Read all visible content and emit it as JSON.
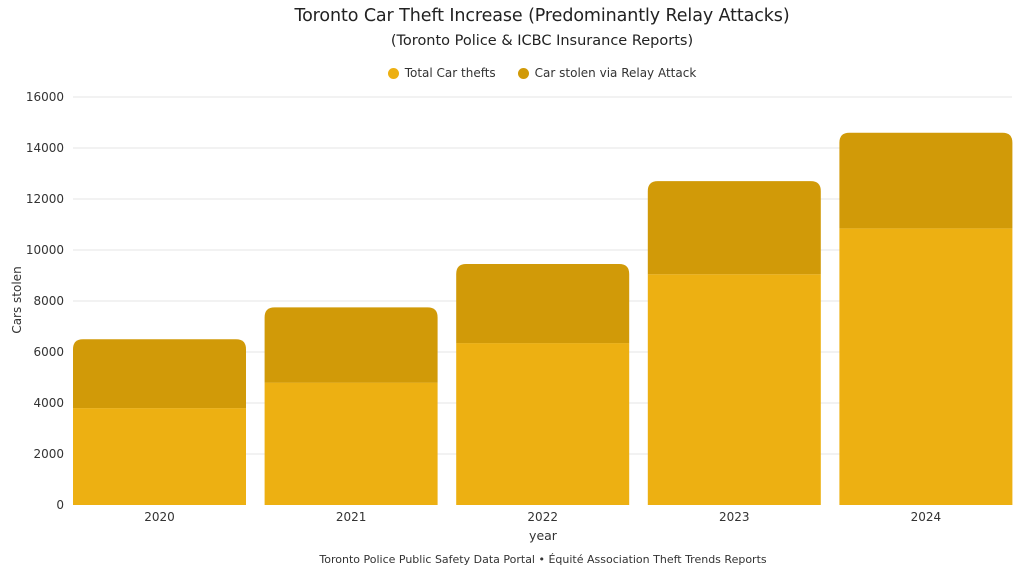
{
  "chart_data": {
    "type": "bar",
    "stacked": true,
    "title": "Toronto Car Theft Increase (Predominantly Relay Attacks)",
    "subtitle": "(Toronto Police & ICBC Insurance Reports)",
    "xlabel": "year",
    "ylabel": "Cars stolen",
    "categories": [
      "2020",
      "2021",
      "2022",
      "2023",
      "2024"
    ],
    "series": [
      {
        "name": "Total Car thefts",
        "color": "#EDB012",
        "values": [
          3800,
          4800,
          6350,
          9050,
          10850
        ]
      },
      {
        "name": "Car stolen via Relay Attack",
        "color": "#D19A08",
        "values": [
          2700,
          2950,
          3100,
          3650,
          3750
        ]
      }
    ],
    "stack_totals": [
      6500,
      7750,
      9450,
      12700,
      14600
    ],
    "ylim": [
      0,
      16000
    ],
    "yticks": [
      0,
      2000,
      4000,
      6000,
      8000,
      10000,
      12000,
      14000,
      16000
    ],
    "grid": true,
    "legend_position": "top-center",
    "source_note": "Toronto Police Public Safety Data Portal • Équité Association Theft Trends Reports"
  },
  "header": {
    "title": "Toronto Car Theft Increase (Predominantly Relay Attacks)",
    "subtitle": "(Toronto Police & ICBC Insurance Reports)"
  },
  "legend": [
    {
      "label": "Total Car thefts",
      "color": "#EDB012"
    },
    {
      "label": "Car stolen via Relay Attack",
      "color": "#D19A08"
    }
  ],
  "axes": {
    "xlabel": "year",
    "ylabel": "Cars stolen"
  },
  "footer": {
    "source": "Toronto Police Public Safety Data Portal • Équité Association Theft Trends Reports"
  },
  "colors": {
    "grid": "#E6E6E6",
    "tick_text": "#333333"
  }
}
